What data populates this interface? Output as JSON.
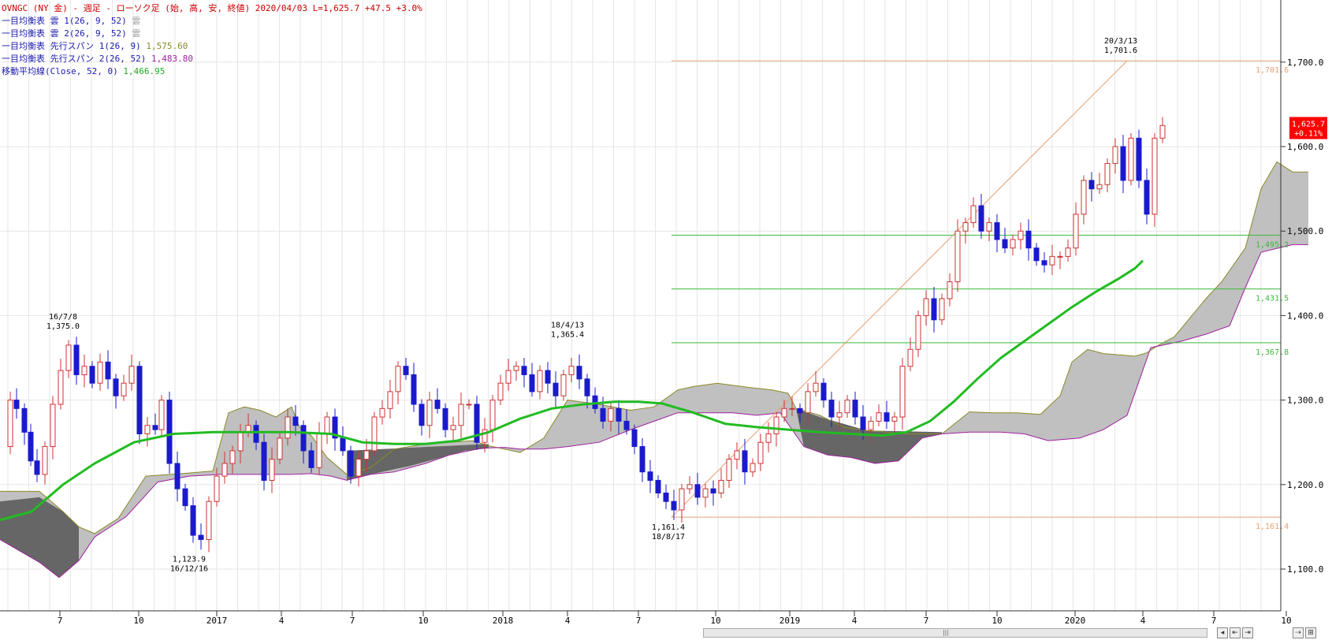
{
  "header": {
    "title": "OVNGC (NY 金) - 週足 - ローソク足 (始, 高, 安, 終値)  2020/04/03 L=1,625.7 +47.5  +3.0%",
    "legend": [
      {
        "label": "一目均衡表 雲 1(26, 9, 52) ",
        "value": "雲",
        "color": "#9a9a9a"
      },
      {
        "label": "一目均衡表 雲 2(26, 9, 52) ",
        "value": "雲",
        "color": "#9a9a9a"
      },
      {
        "label": "一目均衡表 先行スパン 1(26, 9) ",
        "value": "1,575.60",
        "color": "#8a8a2a"
      },
      {
        "label": "一目均衡表 先行スパン 2(26, 52) ",
        "value": "1,483.80",
        "color": "#a020a0"
      },
      {
        "label": "移動平均線(Close, 52, 0) ",
        "value": "1,466.95",
        "color": "#22aa22"
      }
    ]
  },
  "chart_data": {
    "type": "candlestick",
    "instrument": "OVNGC (NY 金)",
    "interval": "週足",
    "ylim": [
      1050,
      1800
    ],
    "y_ticks": [
      "1,100.0",
      "1,200.0",
      "1,300.0",
      "1,400.0",
      "1,500.0",
      "1,600.0",
      "1,700.0"
    ],
    "y_tick_values": [
      1100,
      1200,
      1300,
      1400,
      1500,
      1600,
      1700
    ],
    "x_ticks": [
      "7",
      "10",
      "2017",
      "4",
      "7",
      "10",
      "2018",
      "4",
      "7",
      "10",
      "2019",
      "4",
      "7",
      "10",
      "2020",
      "4",
      "7",
      "10"
    ],
    "last_price": {
      "price": "1,625.7",
      "change": "+0.11%",
      "value": 1625.7
    },
    "horizontal_lines": [
      {
        "label": "1,701.6",
        "value": 1701.6,
        "color": "#e8a070"
      },
      {
        "label": "1,495.2",
        "value": 1495.2,
        "color": "#3cb83c"
      },
      {
        "label": "1,431.5",
        "value": 1431.5,
        "color": "#3cb83c"
      },
      {
        "label": "1,367.8",
        "value": 1367.8,
        "color": "#3cb83c"
      },
      {
        "label": "1,161.4",
        "value": 1161.4,
        "color": "#e8a070"
      }
    ],
    "annotations": [
      {
        "date": "16/7/8",
        "price": "1,375.0",
        "value": 1375.0,
        "position": "above"
      },
      {
        "date": "16/12/16",
        "price": "1,123.9",
        "value": 1123.9,
        "position": "below"
      },
      {
        "date": "18/4/13",
        "price": "1,365.4",
        "value": 1365.4,
        "position": "above"
      },
      {
        "date": "18/8/17",
        "price": "1,161.4",
        "value": 1161.4,
        "position": "below"
      },
      {
        "date": "20/3/13",
        "price": "1,701.6",
        "value": 1701.6,
        "position": "above"
      }
    ],
    "series": [
      {
        "name": "移動平均線(Close, 52, 0)",
        "color": "#22bb22"
      },
      {
        "name": "一目均衡表 先行スパン 1(26, 9)",
        "color": "#8a8a2a"
      },
      {
        "name": "一目均衡表 先行スパン 2(26, 52)",
        "color": "#a020a0"
      }
    ],
    "up_color": "#cc3333",
    "down_color": "#1a1acc",
    "cloud_bull_color": "#c0c0c0",
    "cloud_bear_color": "#666666"
  }
}
